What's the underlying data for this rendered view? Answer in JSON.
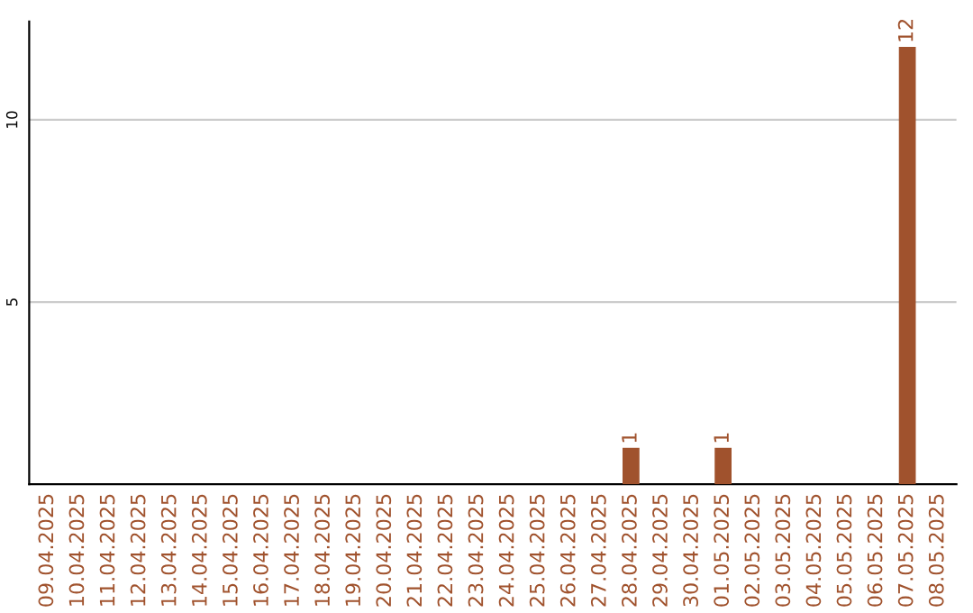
{
  "chart_data": {
    "type": "bar",
    "categories": [
      "09.04.2025",
      "10.04.2025",
      "11.04.2025",
      "12.04.2025",
      "13.04.2025",
      "14.04.2025",
      "15.04.2025",
      "16.04.2025",
      "17.04.2025",
      "18.04.2025",
      "19.04.2025",
      "20.04.2025",
      "21.04.2025",
      "22.04.2025",
      "23.04.2025",
      "24.04.2025",
      "25.04.2025",
      "26.04.2025",
      "27.04.2025",
      "28.04.2025",
      "29.04.2025",
      "30.04.2025",
      "01.05.2025",
      "02.05.2025",
      "03.05.2025",
      "04.05.2025",
      "05.05.2025",
      "06.05.2025",
      "07.05.2025",
      "08.05.2025"
    ],
    "values": [
      0,
      0,
      0,
      0,
      0,
      0,
      0,
      0,
      0,
      0,
      0,
      0,
      0,
      0,
      0,
      0,
      0,
      0,
      0,
      1,
      0,
      0,
      1,
      0,
      0,
      0,
      0,
      0,
      12,
      0
    ],
    "value_labels": [
      null,
      null,
      null,
      null,
      null,
      null,
      null,
      null,
      null,
      null,
      null,
      null,
      null,
      null,
      null,
      null,
      null,
      null,
      null,
      "1",
      null,
      null,
      "1",
      null,
      null,
      null,
      null,
      null,
      "12",
      null
    ],
    "color": "#a0522d",
    "ylim": [
      0,
      12.7
    ],
    "yticks": [
      5,
      10
    ],
    "grid": "y"
  }
}
